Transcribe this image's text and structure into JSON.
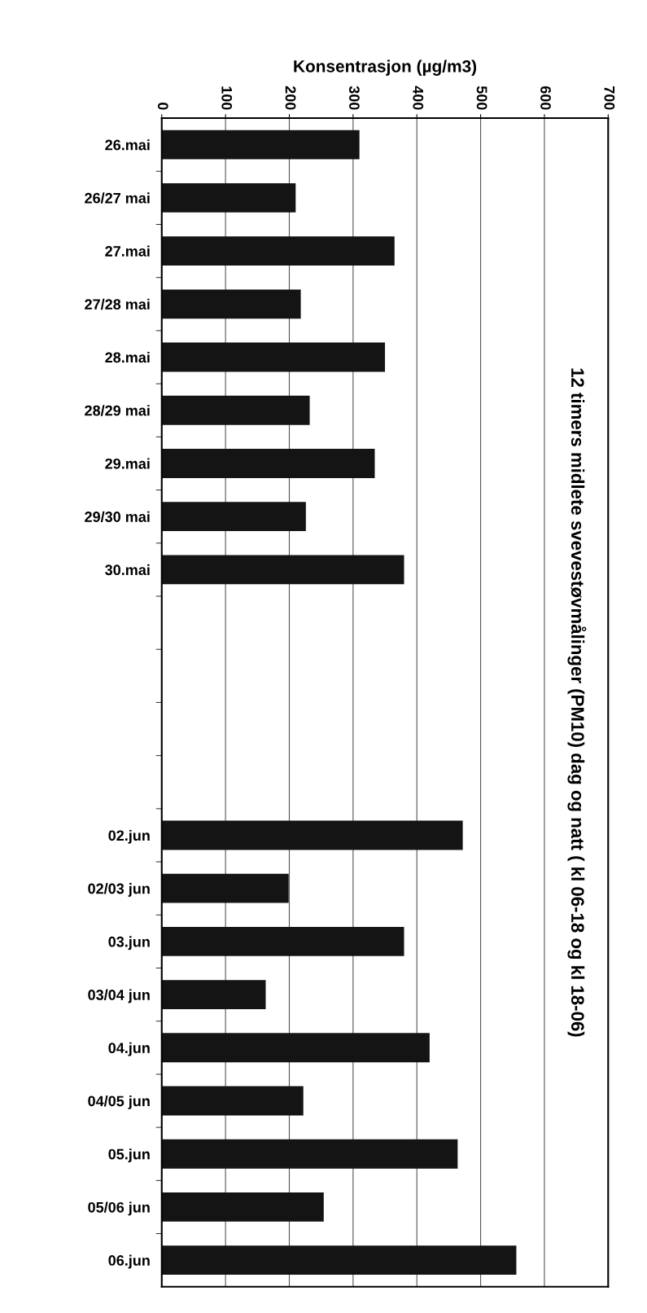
{
  "chart_data": {
    "type": "bar",
    "orientation": "horizontal",
    "title": "12 timers midlete svevestøvmålinger (PM10) dag og natt ( kl 06-18 og kl 18-06)",
    "xlabel": "Konsentrasjon (µg/m3)",
    "categories": [
      "26.mai",
      "26/27 mai",
      "27.mai",
      "27/28 mai",
      "28.mai",
      "28/29 mai",
      "29.mai",
      "29/30 mai",
      "30.mai",
      null,
      null,
      null,
      null,
      "02.jun",
      "02/03 jun",
      "03.jun",
      "03/04 jun",
      "04.jun",
      "04/05 jun",
      "05.jun",
      "05/06 jun",
      "06.jun"
    ],
    "values": [
      310,
      210,
      365,
      218,
      350,
      232,
      334,
      226,
      380,
      null,
      null,
      null,
      null,
      472,
      199,
      380,
      163,
      420,
      222,
      464,
      254,
      556
    ],
    "color": "#141414",
    "xlim": [
      0,
      700
    ],
    "xticks": [
      0,
      100,
      200,
      300,
      400,
      500,
      600,
      700
    ],
    "grid": "x"
  }
}
